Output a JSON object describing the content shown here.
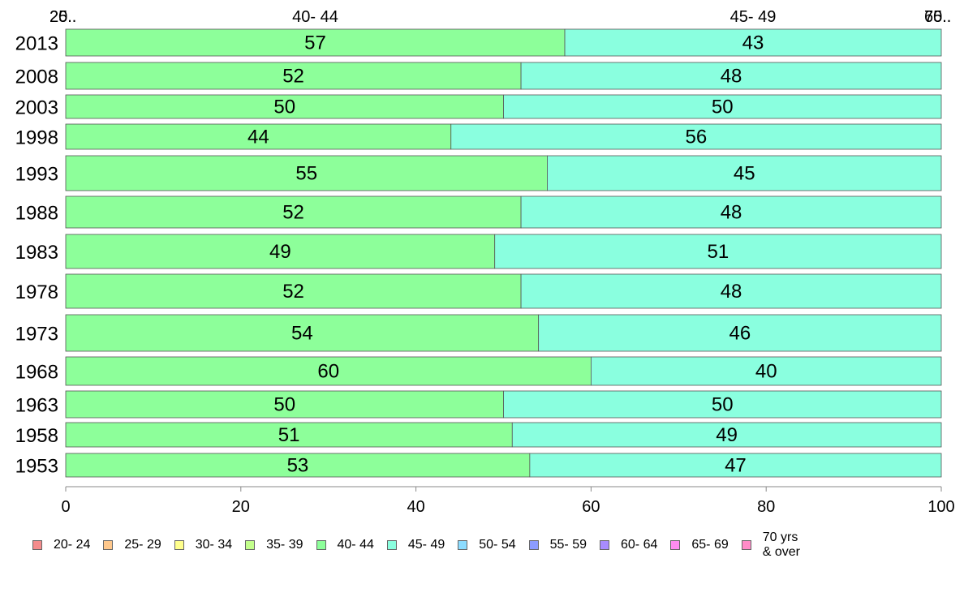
{
  "chart_data": {
    "type": "bar",
    "orientation": "horizontal",
    "stacked": true,
    "xlim": [
      0,
      100
    ],
    "xticks": [
      "0",
      "20",
      "40",
      "60",
      "80",
      "100"
    ],
    "top_labels": [
      "40- 44",
      "45- 49"
    ],
    "top_edge_labels": [
      "20..",
      "25..",
      "65..",
      "70.."
    ],
    "categories": [
      "2013",
      "2008",
      "2003",
      "1998",
      "1993",
      "1988",
      "1983",
      "1978",
      "1973",
      "1968",
      "1963",
      "1958",
      "1953"
    ],
    "series": [
      {
        "name": "40- 44",
        "color": "#8dff9a",
        "values": [
          57,
          52,
          50,
          44,
          55,
          52,
          49,
          52,
          54,
          60,
          50,
          51,
          53
        ]
      },
      {
        "name": "45- 49",
        "color": "#8affdf",
        "values": [
          43,
          48,
          50,
          56,
          45,
          48,
          51,
          48,
          46,
          40,
          50,
          49,
          47
        ]
      }
    ],
    "legend": [
      {
        "label": "20- 24",
        "color": "#f48c8c"
      },
      {
        "label": "25- 29",
        "color": "#ffc88c"
      },
      {
        "label": "30- 34",
        "color": "#ffff8c"
      },
      {
        "label": "35- 39",
        "color": "#c3ff8c"
      },
      {
        "label": "40- 44",
        "color": "#8dff9a"
      },
      {
        "label": "45- 49",
        "color": "#8affdf"
      },
      {
        "label": "50- 54",
        "color": "#8cdcff"
      },
      {
        "label": "55- 59",
        "color": "#8c9cff"
      },
      {
        "label": "60- 64",
        "color": "#a88cff"
      },
      {
        "label": "65- 69",
        "color": "#ff8cf0"
      },
      {
        "label": "70 yrs\n& over",
        "color": "#ff8cc8"
      }
    ],
    "legend_position": "bottom",
    "grid": false
  }
}
